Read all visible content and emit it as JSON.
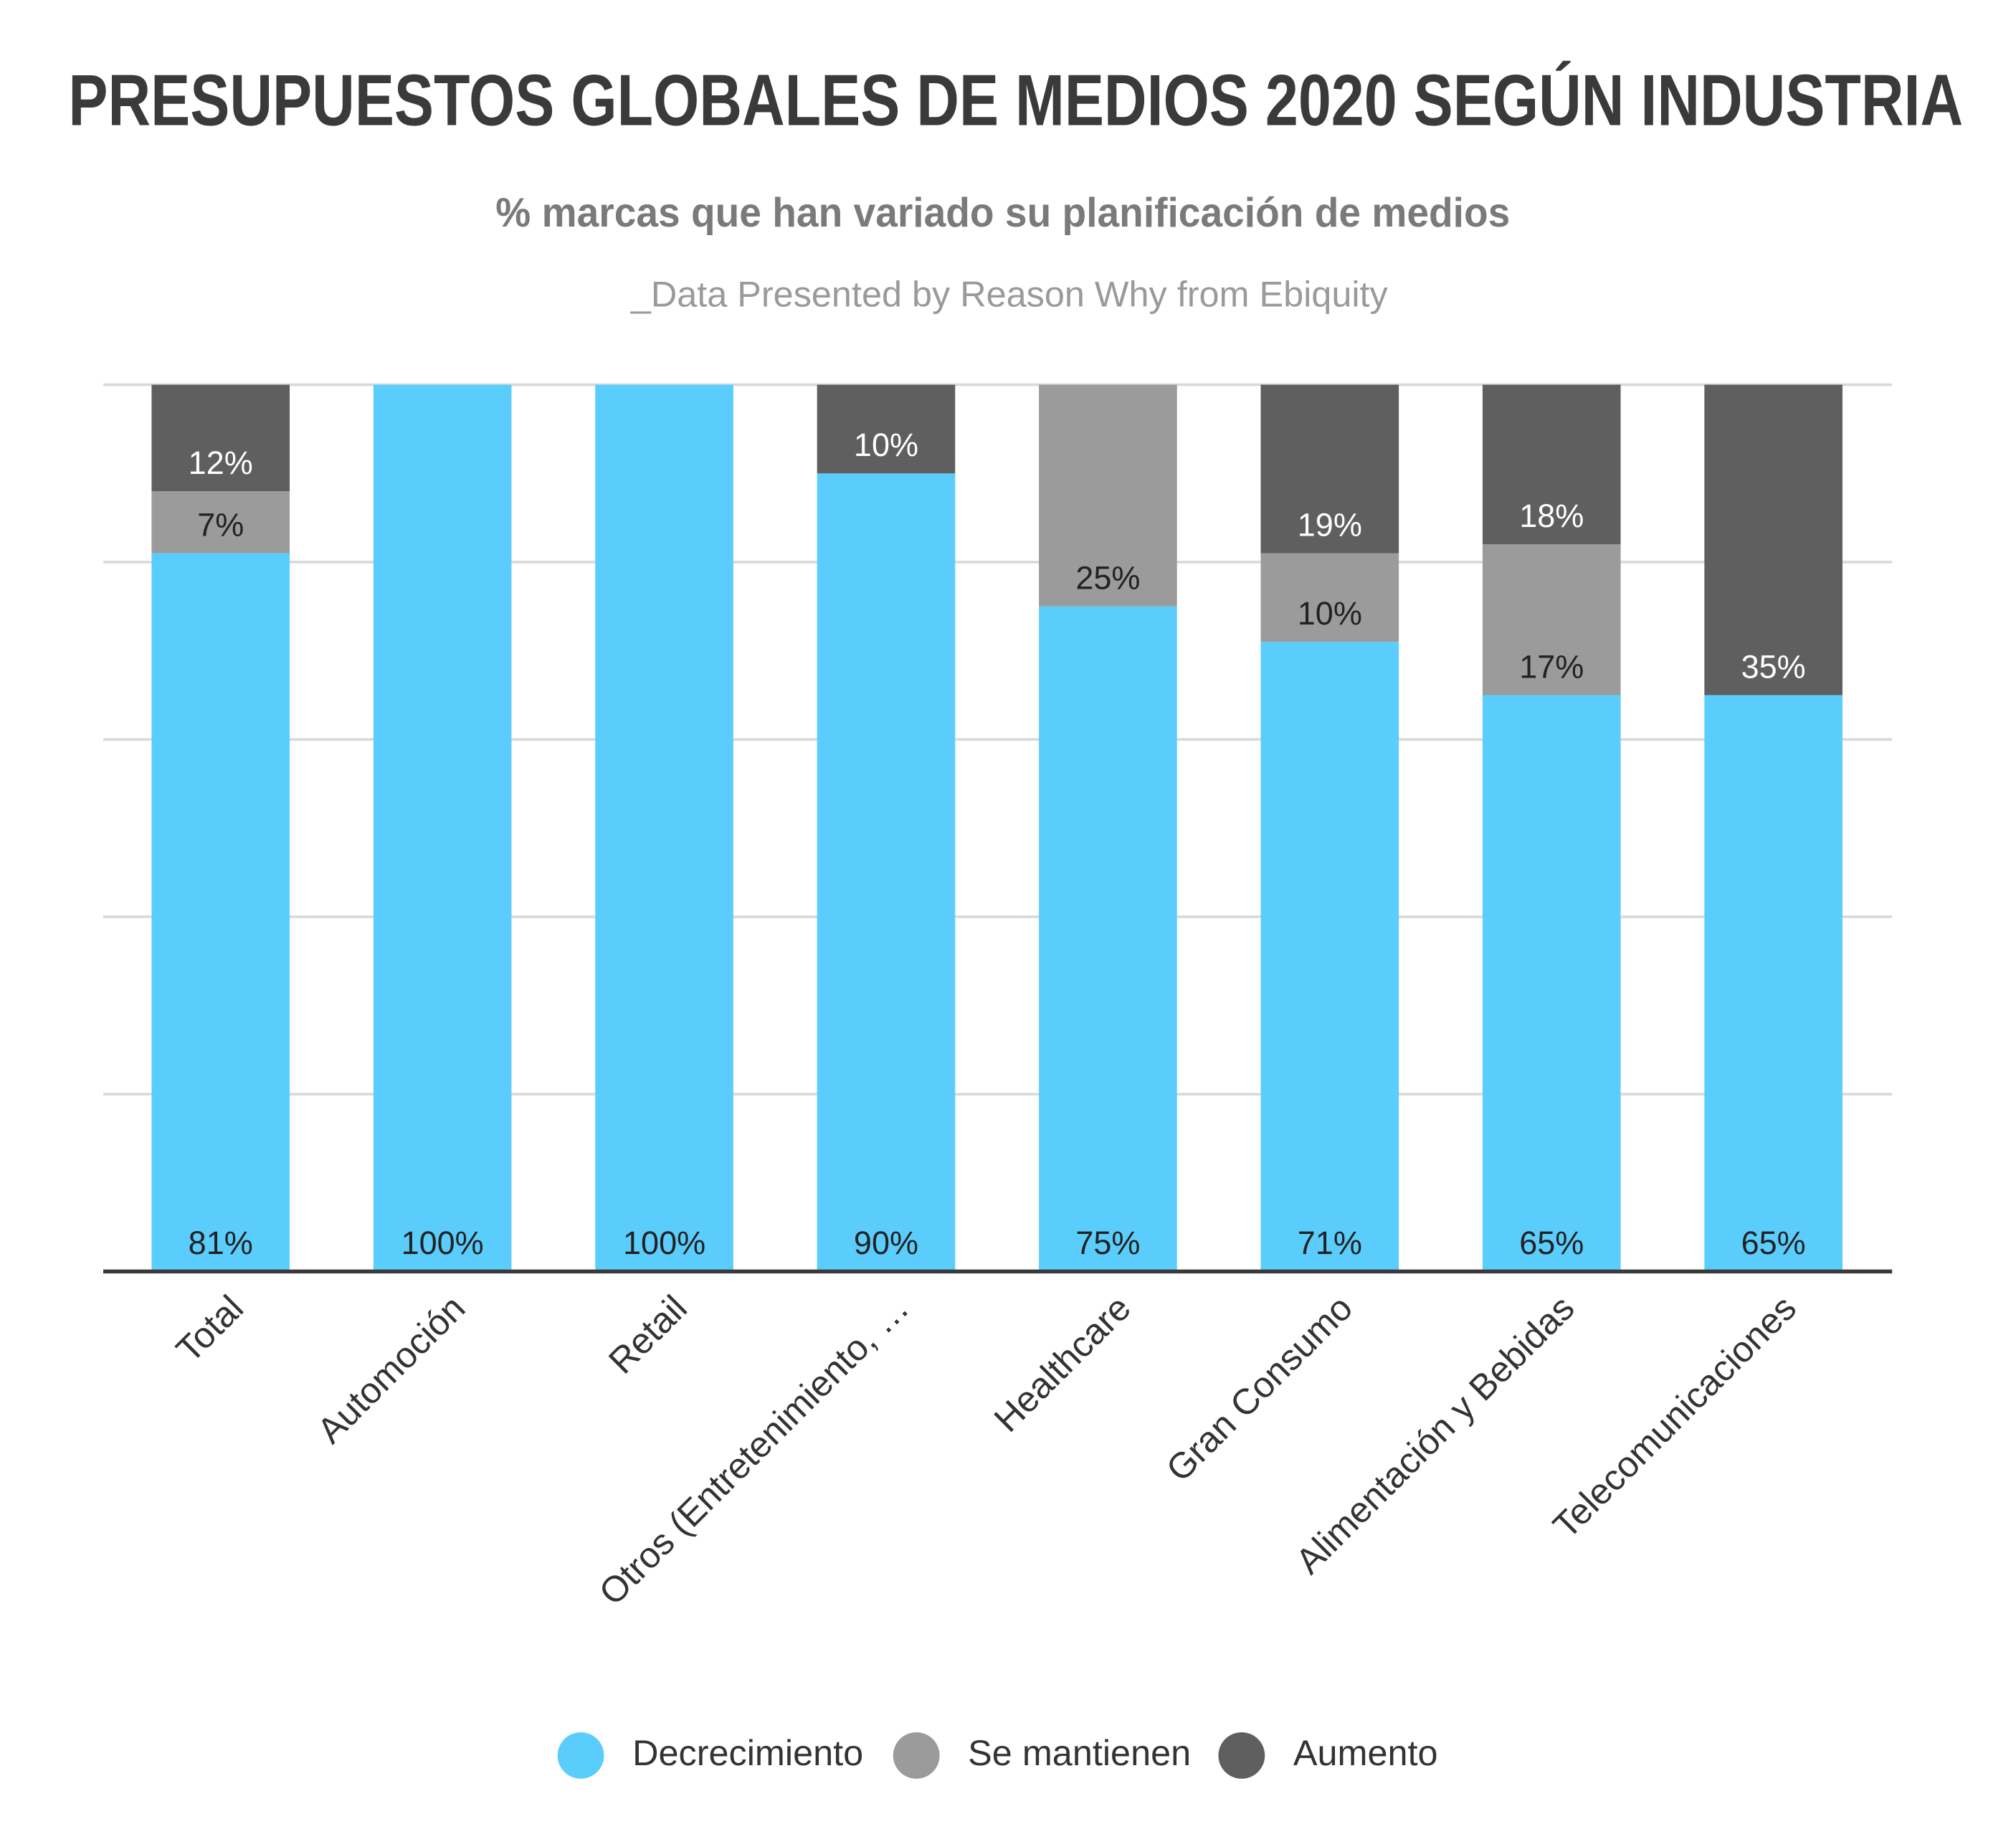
{
  "chart_data": {
    "type": "stacked_bar",
    "title": "PRESUPUESTOS GLOBALES DE MEDIOS 2020 SEGÚN INDUSTRIA",
    "subtitle": "% marcas que han variado su planificación de medios",
    "source": "_Data Presented by Reason Why from Ebiquity",
    "categories": [
      "Total",
      "Automoción",
      "Retail",
      "Otros (Entretenimiento, …",
      "Healthcare",
      "Gran Consumo",
      "Alimentación y Bebidas",
      "Telecomunicaciones"
    ],
    "series": [
      {
        "name": "Decrecimiento",
        "color": "#5bcdfc",
        "label_color": "#222222",
        "values": [
          81,
          100,
          100,
          90,
          75,
          71,
          65,
          65
        ],
        "value_labels": [
          "81%",
          "100%",
          "100%",
          "90%",
          "75%",
          "71%",
          "65%",
          "65%"
        ]
      },
      {
        "name": "Se mantienen",
        "color": "#9b9b9b",
        "label_color": "#222222",
        "values": [
          7,
          0,
          0,
          0,
          25,
          10,
          17,
          0
        ],
        "value_labels": [
          "7%",
          null,
          null,
          null,
          "25%",
          "10%",
          "17%",
          null
        ]
      },
      {
        "name": "Aumento",
        "color": "#5f5f5f",
        "label_color": "#ffffff",
        "values": [
          12,
          0,
          0,
          10,
          0,
          19,
          18,
          35
        ],
        "value_labels": [
          "12%",
          null,
          null,
          "10%",
          null,
          "19%",
          "18%",
          "35%"
        ]
      }
    ],
    "ylim": [
      0,
      100
    ],
    "yticks": [
      0,
      20,
      40,
      60,
      80,
      100
    ],
    "grid": true,
    "legend": "bottom"
  }
}
